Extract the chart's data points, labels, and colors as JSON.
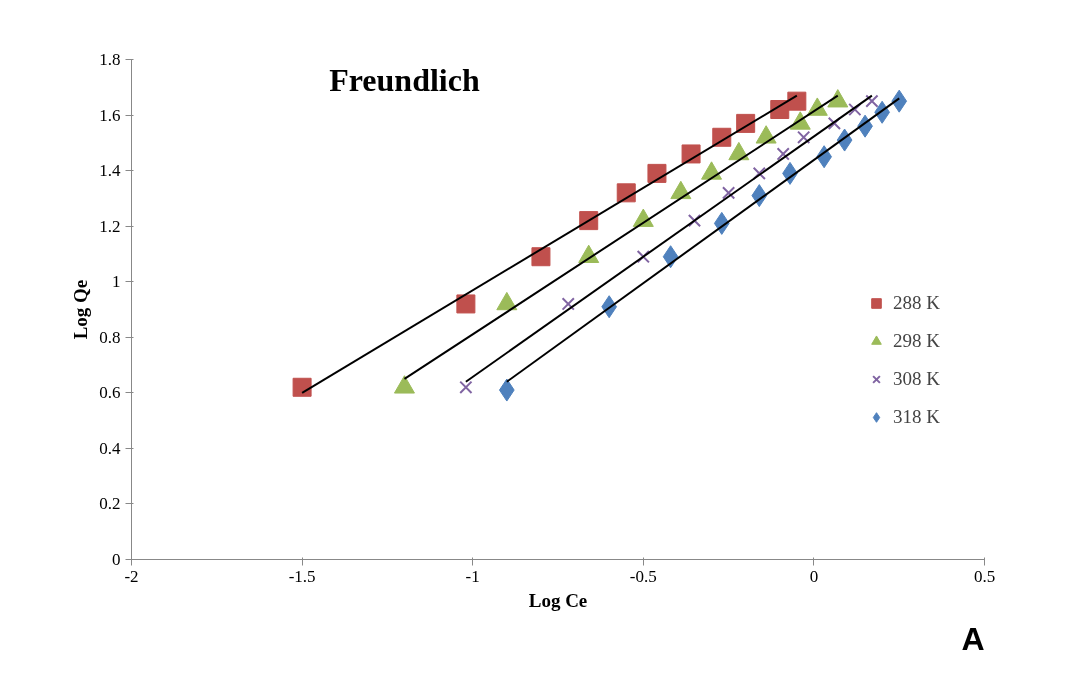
{
  "chart_data": {
    "type": "scatter",
    "title": "Freundlich",
    "xlabel": "Log Ce",
    "ylabel": "Log Qe",
    "xlim": [
      -2,
      0.5
    ],
    "ylim": [
      0,
      1.8
    ],
    "xticks": [
      -2,
      -1.5,
      -1,
      -0.5,
      0,
      0.5
    ],
    "yticks": [
      0,
      0.2,
      0.4,
      0.6,
      0.8,
      1,
      1.2,
      1.4,
      1.6,
      1.8
    ],
    "grid": false,
    "legend": "right",
    "annotations": [
      "A"
    ],
    "series": [
      {
        "name": "288 K",
        "color": "#c0504d",
        "marker": "square",
        "x": [
          -1.5,
          -1.02,
          -0.8,
          -0.66,
          -0.55,
          -0.46,
          -0.36,
          -0.27,
          -0.2,
          -0.1,
          -0.05
        ],
        "values": [
          0.62,
          0.92,
          1.09,
          1.22,
          1.32,
          1.39,
          1.46,
          1.52,
          1.57,
          1.62,
          1.65
        ]
      },
      {
        "name": "298 K",
        "color": "#9bbb59",
        "marker": "triangle",
        "x": [
          -1.2,
          -0.9,
          -0.66,
          -0.5,
          -0.39,
          -0.3,
          -0.22,
          -0.14,
          -0.04,
          0.01,
          0.07
        ],
        "values": [
          0.62,
          0.92,
          1.09,
          1.22,
          1.32,
          1.39,
          1.46,
          1.52,
          1.57,
          1.62,
          1.65
        ]
      },
      {
        "name": "308 K",
        "color": "#8064a2",
        "marker": "cross",
        "x": [
          -1.02,
          -0.72,
          -0.5,
          -0.35,
          -0.25,
          -0.16,
          -0.09,
          -0.03,
          0.06,
          0.12,
          0.17
        ],
        "values": [
          0.62,
          0.92,
          1.09,
          1.22,
          1.32,
          1.39,
          1.46,
          1.52,
          1.57,
          1.62,
          1.65
        ]
      },
      {
        "name": "318 K",
        "color": "#4f81bd",
        "marker": "diamond",
        "x": [
          -0.9,
          -0.6,
          -0.42,
          -0.27,
          -0.16,
          -0.07,
          0.03,
          0.09,
          0.15,
          0.2,
          0.25
        ],
        "values": [
          0.61,
          0.91,
          1.09,
          1.21,
          1.31,
          1.39,
          1.45,
          1.51,
          1.56,
          1.61,
          1.65
        ]
      },
      {
        "type": "line",
        "color": "#000000",
        "x": [
          -1.5,
          -0.05
        ],
        "values": [
          0.6,
          1.67
        ]
      },
      {
        "type": "line",
        "color": "#000000",
        "x": [
          -1.2,
          0.07
        ],
        "values": [
          0.65,
          1.67
        ]
      },
      {
        "type": "line",
        "color": "#000000",
        "x": [
          -1.02,
          0.17
        ],
        "values": [
          0.64,
          1.67
        ]
      },
      {
        "type": "line",
        "color": "#000000",
        "x": [
          -0.9,
          0.25
        ],
        "values": [
          0.64,
          1.66
        ]
      }
    ]
  }
}
